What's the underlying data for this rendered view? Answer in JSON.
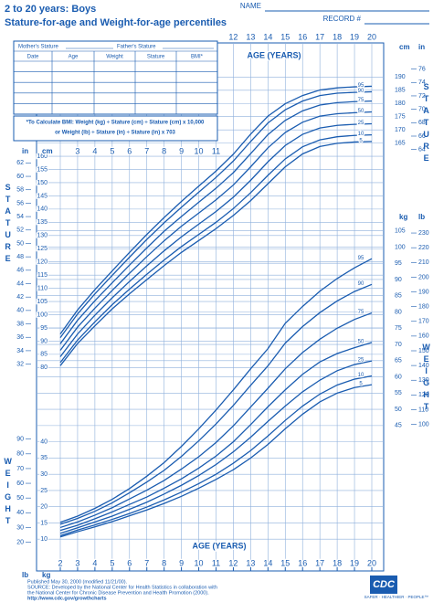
{
  "header": {
    "title": "2 to 20 years: Boys",
    "subtitle": "Stature-for-age and Weight-for-age percentiles",
    "name_label": "NAME",
    "record_label": "RECORD #"
  },
  "table": {
    "mother_label": "Mother's Stature",
    "father_label": "Father's Stature",
    "columns": [
      "Date",
      "Age",
      "Weight",
      "Stature",
      "BMI*"
    ],
    "bmi_note": [
      "*To Calculate BMI: Weight (kg) ÷ Stature (cm) ÷ Stature (cm) x 10,000",
      "or Weight (lb) ÷ Stature (in) ÷ Stature (in) x 703"
    ]
  },
  "footer": {
    "lines": [
      "Published May 30, 2000 (modified 11/21/00).",
      "SOURCE: Developed by the National Center for Health Statistics in collaboration with",
      "the National Center for Chronic Disease Prevention and Health Promotion (2000).",
      "http://www.cdc.gov/growthcharts"
    ],
    "logo": "CDC",
    "slogan": "SAFER · HEALTHIER · PEOPLE™"
  },
  "chart_data": [
    {
      "type": "line",
      "xlabel": "AGE (YEARS)",
      "ylabel": "STATURE",
      "y_unit": "cm",
      "y2_unit": "in",
      "grid": true,
      "grid_color": "#8fb0dc",
      "x": [
        2,
        3,
        4,
        5,
        6,
        7,
        8,
        9,
        10,
        11,
        12,
        13,
        14,
        15,
        16,
        17,
        18,
        19,
        20
      ],
      "xlim": [
        2,
        20
      ],
      "xticks": [
        2,
        3,
        4,
        5,
        6,
        7,
        8,
        9,
        10,
        11,
        12,
        13,
        14,
        15,
        16,
        17,
        18,
        19,
        20
      ],
      "ylim": [
        77,
        196
      ],
      "yticks": [
        80,
        85,
        90,
        95,
        100,
        105,
        110,
        115,
        120,
        125,
        130,
        135,
        140,
        145,
        150,
        155,
        160,
        165,
        170,
        175,
        180,
        185,
        190
      ],
      "y2lim": [
        30.31,
        77.17
      ],
      "y2ticks": [
        32,
        34,
        36,
        38,
        40,
        42,
        44,
        46,
        48,
        50,
        52,
        54,
        56,
        58,
        60,
        62,
        64,
        66,
        68,
        70,
        72,
        74,
        76
      ],
      "series": [
        {
          "name": "95",
          "color": "#1a5cb0",
          "values": [
            92.7,
            101.8,
            109.5,
            116.6,
            123.6,
            130.4,
            136.8,
            142.9,
            148.7,
            154.4,
            160.8,
            168.4,
            175.2,
            179.9,
            183.0,
            185.1,
            185.9,
            186.3,
            186.5
          ]
        },
        {
          "name": "90",
          "color": "#1a5cb0",
          "values": [
            91.3,
            100.3,
            107.9,
            114.9,
            121.8,
            128.5,
            134.8,
            140.7,
            146.4,
            152.0,
            158.2,
            165.6,
            172.6,
            177.6,
            180.9,
            183.0,
            183.9,
            184.2,
            184.4
          ]
        },
        {
          "name": "75",
          "color": "#1a5cb0",
          "values": [
            89.0,
            97.9,
            105.3,
            112.1,
            118.8,
            125.3,
            131.6,
            137.2,
            142.6,
            147.9,
            153.8,
            161.0,
            168.2,
            173.6,
            177.2,
            179.4,
            180.3,
            180.7,
            180.9
          ]
        },
        {
          "name": "50",
          "color": "#1a5cb0",
          "values": [
            86.5,
            95.3,
            102.5,
            109.2,
            115.7,
            122.0,
            128.0,
            133.5,
            138.5,
            143.5,
            149.1,
            156.0,
            163.2,
            169.0,
            172.9,
            175.2,
            176.1,
            176.5,
            176.8
          ]
        },
        {
          "name": "25",
          "color": "#1a5cb0",
          "values": [
            84.1,
            92.7,
            99.8,
            106.4,
            112.6,
            118.5,
            124.2,
            129.5,
            134.3,
            139.1,
            144.5,
            150.9,
            157.9,
            164.1,
            168.3,
            170.7,
            171.7,
            172.1,
            172.3
          ]
        },
        {
          "name": "10",
          "color": "#1a5cb0",
          "values": [
            81.9,
            90.4,
            97.3,
            103.8,
            109.7,
            115.3,
            120.7,
            125.8,
            130.4,
            135.0,
            140.2,
            146.2,
            152.8,
            159.0,
            163.6,
            166.2,
            167.4,
            167.9,
            168.1
          ]
        },
        {
          "name": "5",
          "color": "#1a5cb0",
          "values": [
            80.7,
            89.1,
            95.8,
            102.2,
            107.9,
            113.3,
            118.6,
            123.6,
            128.1,
            132.6,
            137.6,
            143.2,
            149.6,
            156.0,
            160.9,
            163.7,
            164.9,
            165.4,
            165.6
          ]
        }
      ]
    },
    {
      "type": "line",
      "xlabel": "AGE (YEARS)",
      "ylabel": "WEIGHT",
      "y_unit": "kg",
      "y2_unit": "lb",
      "grid": true,
      "grid_color": "#8fb0dc",
      "x": [
        2,
        3,
        4,
        5,
        6,
        7,
        8,
        9,
        10,
        11,
        12,
        13,
        14,
        15,
        16,
        17,
        18,
        19,
        20
      ],
      "xlim": [
        2,
        20
      ],
      "xticks": [
        2,
        3,
        4,
        5,
        6,
        7,
        8,
        9,
        10,
        11,
        12,
        13,
        14,
        15,
        16,
        17,
        18,
        19,
        20
      ],
      "ylim": [
        5,
        108
      ],
      "yticks": [
        10,
        15,
        20,
        25,
        30,
        35,
        40,
        45,
        50,
        55,
        60,
        65,
        70,
        75,
        80,
        85,
        90,
        95,
        100,
        105
      ],
      "y2lim": [
        11.02,
        238.1
      ],
      "y2ticks": [
        20,
        30,
        40,
        50,
        60,
        70,
        80,
        90,
        100,
        110,
        120,
        130,
        140,
        150,
        160,
        170,
        180,
        190,
        200,
        210,
        220,
        230
      ],
      "series": [
        {
          "name": "95",
          "color": "#1a5cb0",
          "values": [
            15.2,
            17.1,
            19.5,
            22.3,
            25.6,
            29.4,
            33.6,
            38.6,
            44.0,
            49.8,
            56.0,
            62.5,
            68.7,
            76.5,
            81.7,
            86.4,
            90.3,
            93.6,
            96.4
          ]
        },
        {
          "name": "90",
          "color": "#1a5cb0",
          "values": [
            14.6,
            16.4,
            18.6,
            21.2,
            24.3,
            27.6,
            31.2,
            35.5,
            40.3,
            45.5,
            51.2,
            57.4,
            63.4,
            70.4,
            75.5,
            79.8,
            83.4,
            86.3,
            88.5
          ]
        },
        {
          "name": "75",
          "color": "#1a5cb0",
          "values": [
            13.6,
            15.3,
            17.4,
            19.7,
            22.4,
            25.1,
            28.1,
            31.6,
            35.4,
            39.8,
            44.9,
            50.7,
            56.5,
            62.5,
            67.5,
            71.6,
            75.0,
            77.7,
            79.7
          ]
        },
        {
          "name": "50",
          "color": "#1a5cb0",
          "values": [
            12.7,
            14.3,
            16.3,
            18.4,
            20.7,
            23.0,
            25.7,
            28.6,
            31.9,
            35.6,
            40.0,
            45.3,
            50.8,
            56.0,
            60.8,
            64.6,
            67.2,
            69.0,
            70.6
          ]
        },
        {
          "name": "25",
          "color": "#1a5cb0",
          "values": [
            11.8,
            13.5,
            15.3,
            17.1,
            19.2,
            21.4,
            23.9,
            26.6,
            29.6,
            33.0,
            36.9,
            41.4,
            46.3,
            51.0,
            55.4,
            59.0,
            61.9,
            63.8,
            64.9
          ]
        },
        {
          "name": "10",
          "color": "#1a5cb0",
          "values": [
            11.1,
            12.8,
            14.4,
            16.1,
            17.9,
            19.9,
            22.1,
            24.5,
            27.1,
            30.0,
            33.4,
            37.3,
            41.8,
            46.6,
            51.0,
            54.7,
            57.5,
            59.3,
            60.3
          ]
        },
        {
          "name": "5",
          "color": "#1a5cb0",
          "values": [
            10.7,
            12.3,
            13.8,
            15.4,
            17.2,
            19.0,
            21.0,
            23.2,
            25.7,
            28.4,
            31.4,
            35.0,
            39.2,
            44.0,
            48.5,
            52.3,
            55.0,
            56.7,
            57.6
          ]
        }
      ]
    }
  ]
}
